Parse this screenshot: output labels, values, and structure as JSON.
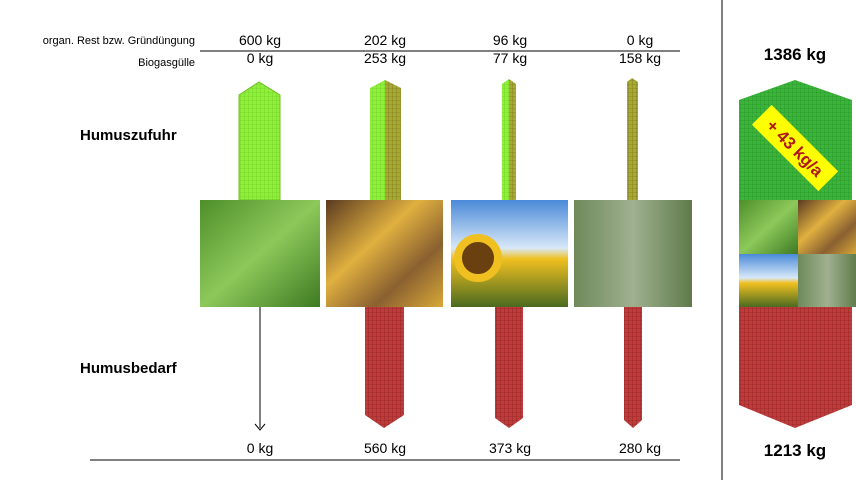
{
  "labels": {
    "rest": "organ. Rest bzw. Gründüngung",
    "guelle": "Biogasgülle",
    "zufuhr": "Humuszufuhr",
    "bedarf": "Humusbedarf"
  },
  "crops": [
    {
      "rest": "600 kg",
      "guelle": "0 kg",
      "bedarf": "0 kg"
    },
    {
      "rest": "202 kg",
      "guelle": "253 kg",
      "bedarf": "560 kg"
    },
    {
      "rest": "96 kg",
      "guelle": "77 kg",
      "bedarf": "373 kg"
    },
    {
      "rest": "0 kg",
      "guelle": "158 kg",
      "bedarf": "280 kg"
    }
  ],
  "total": {
    "zufuhr": "1386 kg",
    "bedarf": "1213 kg",
    "balance": "+ 43 kg/a"
  }
}
